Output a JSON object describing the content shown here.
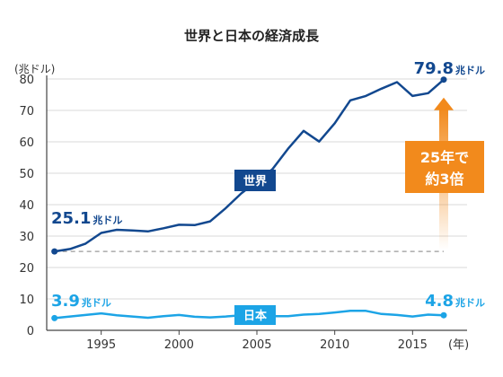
{
  "colors": {
    "world": "#12488f",
    "japan": "#1ca4e6",
    "callout": "#f28a1c",
    "grid": "#d8d8d8",
    "axis": "#444444",
    "dash": "#9a9a9a"
  },
  "chart_data": {
    "type": "line",
    "title": "世界と日本の経済成長",
    "ylabel": "(兆ドル)",
    "xlabel": "",
    "x_unit": "(年)",
    "xlim": [
      1991.5,
      2018.5
    ],
    "ylim": [
      0,
      80
    ],
    "yticks": [
      0,
      10,
      20,
      30,
      40,
      50,
      60,
      70,
      80
    ],
    "xticks": [
      1995,
      2000,
      2005,
      2010,
      2015
    ],
    "grid": true,
    "years": [
      1992,
      1993,
      1994,
      1995,
      1996,
      1997,
      1998,
      1999,
      2000,
      2001,
      2002,
      2003,
      2004,
      2005,
      2006,
      2007,
      2008,
      2009,
      2010,
      2011,
      2012,
      2013,
      2014,
      2015,
      2016,
      2017
    ],
    "series": [
      {
        "name": "世界",
        "key": "world",
        "values": [
          25.1,
          25.9,
          27.6,
          31.0,
          32.0,
          31.8,
          31.5,
          32.5,
          33.6,
          33.5,
          34.7,
          38.9,
          43.6,
          47.4,
          51.3,
          57.8,
          63.5,
          60.1,
          65.9,
          73.2,
          74.6,
          76.9,
          79.0,
          74.6,
          75.5,
          79.8
        ]
      },
      {
        "name": "日本",
        "key": "japan",
        "values": [
          3.9,
          4.4,
          4.9,
          5.4,
          4.8,
          4.4,
          4.0,
          4.5,
          4.9,
          4.3,
          4.1,
          4.4,
          4.8,
          4.8,
          4.5,
          4.5,
          5.0,
          5.2,
          5.7,
          6.2,
          6.2,
          5.2,
          4.9,
          4.4,
          5.0,
          4.8
        ]
      }
    ],
    "annotations": {
      "world_start": {
        "value": "25.1",
        "unit": "兆ドル"
      },
      "world_end": {
        "value": "79.8",
        "unit": "兆ドル"
      },
      "japan_start": {
        "value": "3.9",
        "unit": "兆ドル"
      },
      "japan_end": {
        "value": "4.8",
        "unit": "兆ドル"
      },
      "world_label": "世界",
      "japan_label": "日本",
      "callout_line1": "25年で",
      "callout_line2": "約3倍"
    }
  }
}
